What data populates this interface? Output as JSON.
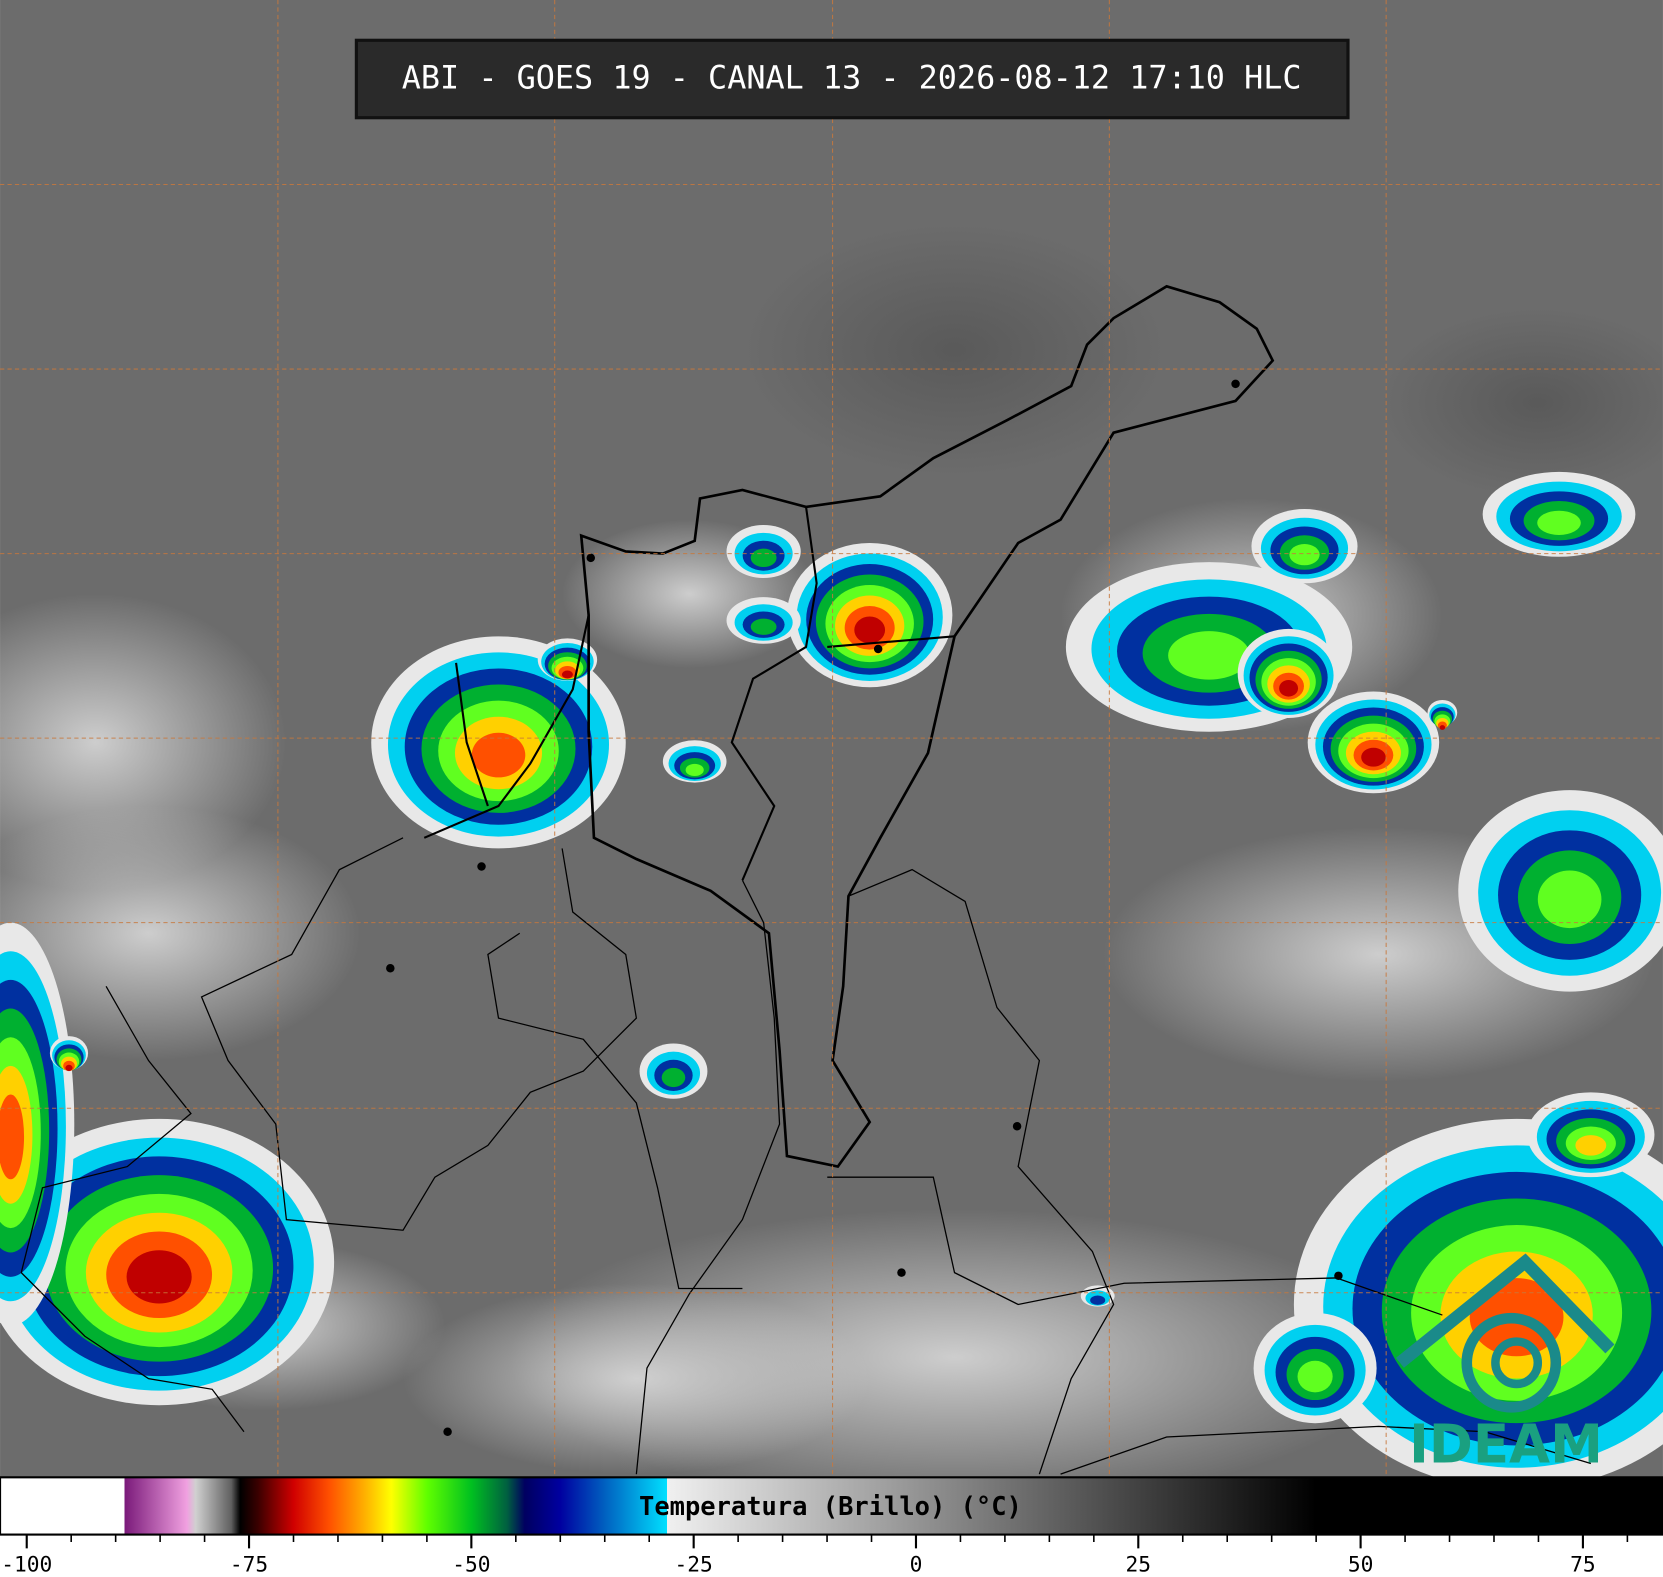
{
  "header": {
    "title": "ABI - GOES 19 - CANAL 13 - 2026-08-12 17:10 HLC"
  },
  "colorbar": {
    "label": "Temperatura (Brillo) (°C)",
    "range": [
      -103,
      84
    ],
    "ticks": [
      -100,
      -75,
      -50,
      -25,
      0,
      25,
      50,
      75
    ],
    "minor_ticks": [
      -95,
      -90,
      -85,
      -80,
      -70,
      -65,
      -60,
      -55,
      -45,
      -40,
      -35,
      -30,
      -20,
      -15,
      -10,
      -5,
      5,
      10,
      15,
      20,
      30,
      35,
      40,
      45,
      55,
      60,
      65,
      70,
      80
    ],
    "stops": [
      [
        -103,
        "#ffffff"
      ],
      [
        -89,
        "#ffffff"
      ],
      [
        -89,
        "#7a1a7a"
      ],
      [
        -82,
        "#f0a0e0"
      ],
      [
        -81,
        "#d0d0d0"
      ],
      [
        -77,
        "#606060"
      ],
      [
        -76,
        "#000000"
      ],
      [
        -74,
        "#3a0000"
      ],
      [
        -70,
        "#d00000"
      ],
      [
        -66,
        "#ff5000"
      ],
      [
        -62,
        "#ffb000"
      ],
      [
        -59,
        "#ffff00"
      ],
      [
        -55,
        "#60ff00"
      ],
      [
        -50,
        "#00c020"
      ],
      [
        -46,
        "#006040"
      ],
      [
        -44,
        "#000060"
      ],
      [
        -40,
        "#0000a0"
      ],
      [
        -35,
        "#0060c0"
      ],
      [
        -28,
        "#00e0ff"
      ],
      [
        -28,
        "#f0f0f0"
      ],
      [
        45,
        "#000000"
      ],
      [
        84,
        "#000000"
      ]
    ]
  },
  "logo": {
    "text": "IDEAM"
  }
}
